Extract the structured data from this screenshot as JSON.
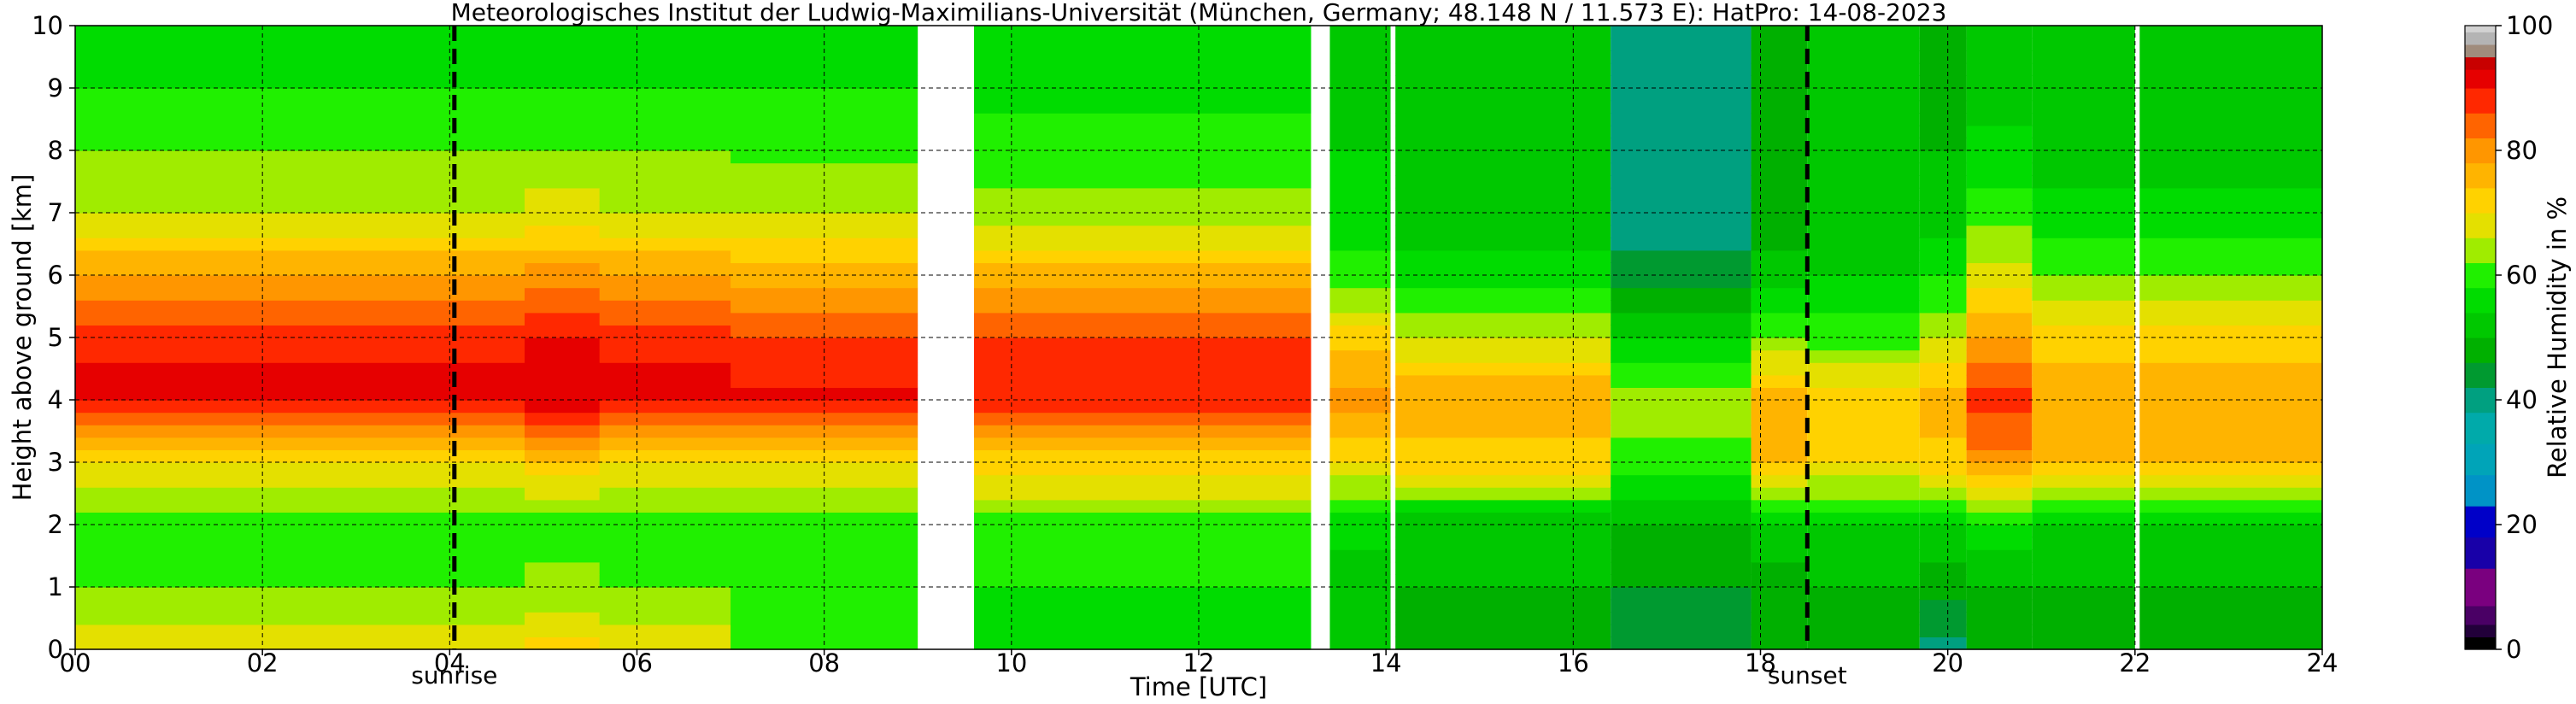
{
  "chart_data": {
    "type": "heatmap",
    "title": "Meteorologisches Institut der Ludwig-Maximilians-Universität (München, Germany; 48.148 N / 11.573 E):    HatPro: 14-08-2023",
    "xlabel": "Time [UTC]",
    "ylabel": "Height above ground [km]",
    "xlim": [
      0,
      24
    ],
    "ylim": [
      0,
      10
    ],
    "x_ticks": [
      "00",
      "02",
      "04",
      "06",
      "08",
      "10",
      "12",
      "14",
      "16",
      "18",
      "20",
      "22",
      "24"
    ],
    "y_ticks": [
      "0",
      "1",
      "2",
      "3",
      "4",
      "5",
      "6",
      "7",
      "8",
      "9",
      "10"
    ],
    "grid": true,
    "colorbar": {
      "label": "Relative Humidity in %",
      "range": [
        0,
        100
      ],
      "ticks": [
        "0",
        "20",
        "40",
        "60",
        "80",
        "100"
      ],
      "levels": [
        {
          "from": 0,
          "to": 2,
          "color": "#000000"
        },
        {
          "from": 2,
          "to": 4,
          "color": "#22003a"
        },
        {
          "from": 4,
          "to": 7,
          "color": "#4a0065"
        },
        {
          "from": 7,
          "to": 13,
          "color": "#7a007f"
        },
        {
          "from": 13,
          "to": 18,
          "color": "#1800a8"
        },
        {
          "from": 18,
          "to": 23,
          "color": "#0000c8"
        },
        {
          "from": 23,
          "to": 28,
          "color": "#0093c6"
        },
        {
          "from": 28,
          "to": 33,
          "color": "#00a4b8"
        },
        {
          "from": 33,
          "to": 38,
          "color": "#00aaaa"
        },
        {
          "from": 38,
          "to": 42,
          "color": "#00a080"
        },
        {
          "from": 42,
          "to": 46,
          "color": "#009a30"
        },
        {
          "from": 46,
          "to": 50,
          "color": "#00b000"
        },
        {
          "from": 50,
          "to": 54,
          "color": "#00c800"
        },
        {
          "from": 54,
          "to": 58,
          "color": "#00dc00"
        },
        {
          "from": 58,
          "to": 62,
          "color": "#20f000"
        },
        {
          "from": 62,
          "to": 66,
          "color": "#a0ec00"
        },
        {
          "from": 66,
          "to": 70,
          "color": "#e4e000"
        },
        {
          "from": 70,
          "to": 74,
          "color": "#ffd200"
        },
        {
          "from": 74,
          "to": 78,
          "color": "#ffb400"
        },
        {
          "from": 78,
          "to": 82,
          "color": "#ff9600"
        },
        {
          "from": 82,
          "to": 86,
          "color": "#ff6400"
        },
        {
          "from": 86,
          "to": 90,
          "color": "#ff2800"
        },
        {
          "from": 90,
          "to": 93,
          "color": "#e60000"
        },
        {
          "from": 93,
          "to": 95,
          "color": "#c80000"
        },
        {
          "from": 95,
          "to": 97,
          "color": "#a08c7c"
        },
        {
          "from": 97,
          "to": 99,
          "color": "#b4b4b4"
        },
        {
          "from": 99,
          "to": 100,
          "color": "#d2d2d2"
        }
      ]
    },
    "data_gaps_utc": [
      [
        9.0,
        9.6
      ],
      [
        13.2,
        13.4
      ],
      [
        14.05,
        14.1
      ],
      [
        22.0,
        22.05
      ]
    ],
    "columns": [
      {
        "t0": 0.0,
        "t1": 9.0,
        "rh": [
          68,
          62,
          60,
          70,
          92,
          88,
          78,
          66,
          62,
          58,
          57
        ]
      },
      {
        "t0": 4.8,
        "t1": 5.6,
        "rh": [
          72,
          63,
          60,
          72,
          92,
          90,
          80,
          68,
          62,
          58,
          57
        ]
      },
      {
        "t0": 7.0,
        "t1": 9.0,
        "rh": [
          62,
          61,
          60,
          70,
          91,
          87,
          77,
          65,
          61,
          58,
          57
        ]
      },
      {
        "t0": 9.6,
        "t1": 13.2,
        "rh": [
          55,
          58,
          60,
          72,
          90,
          86,
          76,
          64,
          60,
          57,
          56
        ]
      },
      {
        "t0": 13.4,
        "t1": 14.05,
        "rh": [
          50,
          52,
          55,
          70,
          80,
          72,
          60,
          56,
          54,
          52,
          52
        ]
      },
      {
        "t0": 14.1,
        "t1": 16.4,
        "rh": [
          48,
          50,
          52,
          72,
          78,
          66,
          56,
          52,
          50,
          50,
          50
        ]
      },
      {
        "t0": 16.4,
        "t1": 17.9,
        "rh": [
          44,
          46,
          50,
          60,
          64,
          54,
          44,
          40,
          40,
          40,
          42
        ]
      },
      {
        "t0": 17.9,
        "t1": 18.5,
        "rh": [
          46,
          48,
          52,
          74,
          76,
          62,
          52,
          48,
          46,
          46,
          46
        ]
      },
      {
        "t0": 18.5,
        "t1": 19.7,
        "rh": [
          48,
          50,
          54,
          70,
          74,
          60,
          54,
          52,
          50,
          50,
          50
        ]
      },
      {
        "t0": 19.7,
        "t1": 20.2,
        "rh": [
          40,
          48,
          54,
          72,
          76,
          66,
          58,
          52,
          50,
          48,
          48
        ]
      },
      {
        "t0": 20.2,
        "t1": 20.9,
        "rh": [
          48,
          50,
          56,
          80,
          88,
          78,
          68,
          60,
          56,
          52,
          52
        ]
      },
      {
        "t0": 20.9,
        "t1": 24.0,
        "rh": [
          48,
          50,
          54,
          74,
          76,
          72,
          62,
          56,
          52,
          50,
          50
        ]
      }
    ],
    "annotations": [
      {
        "label": "sunrise",
        "x": 4.05
      },
      {
        "label": "sunset",
        "x": 18.5
      }
    ]
  }
}
